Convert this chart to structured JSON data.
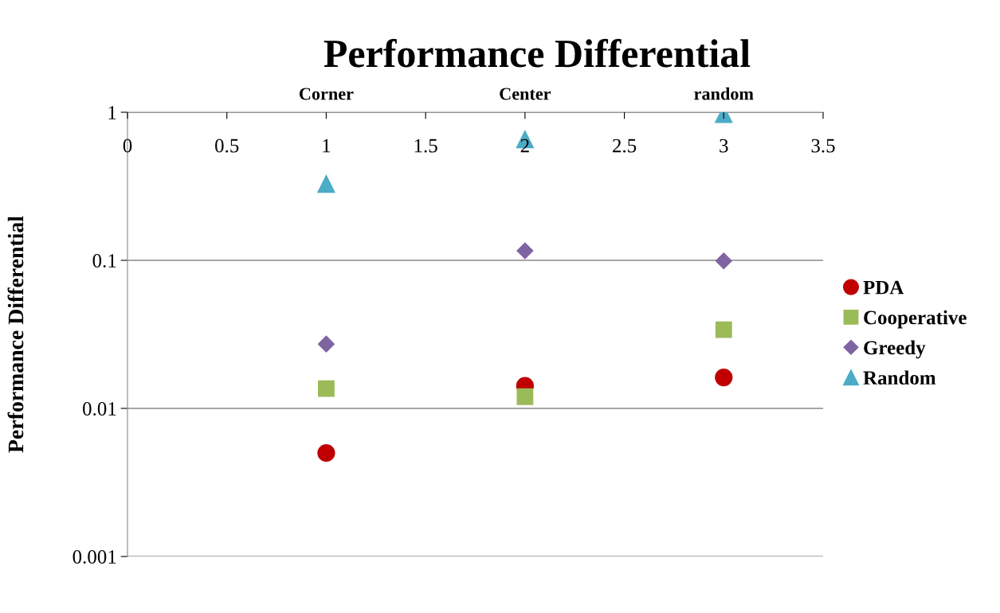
{
  "chart_data": {
    "type": "scatter",
    "title": "Performance Differential",
    "ylabel": "Performance Differential",
    "x": [
      1,
      2,
      3
    ],
    "series": [
      {
        "name": "PDA",
        "color": "#c00000",
        "marker": "circle",
        "values": [
          0.005,
          0.0142,
          0.0162
        ]
      },
      {
        "name": "Cooperative",
        "color": "#9bbb59",
        "marker": "square",
        "values": [
          0.0136,
          0.012,
          0.034
        ]
      },
      {
        "name": "Greedy",
        "color": "#8064a2",
        "marker": "diamond",
        "values": [
          0.0272,
          0.116,
          0.099
        ]
      },
      {
        "name": "Random",
        "color": "#4bacc6",
        "marker": "triangle",
        "values": [
          0.328,
          0.656,
          0.97
        ]
      }
    ],
    "log": "y",
    "xlim": [
      0,
      3.5
    ],
    "xticks": [
      0,
      0.5,
      1,
      1.5,
      2,
      2.5,
      3,
      3.5
    ],
    "annotations": [
      "Corner",
      "Center",
      "random"
    ],
    "ylim": [
      0.001,
      1
    ],
    "yticks": [
      0.001,
      0.01,
      0.1,
      1
    ],
    "grid": "y",
    "legend": "right"
  }
}
